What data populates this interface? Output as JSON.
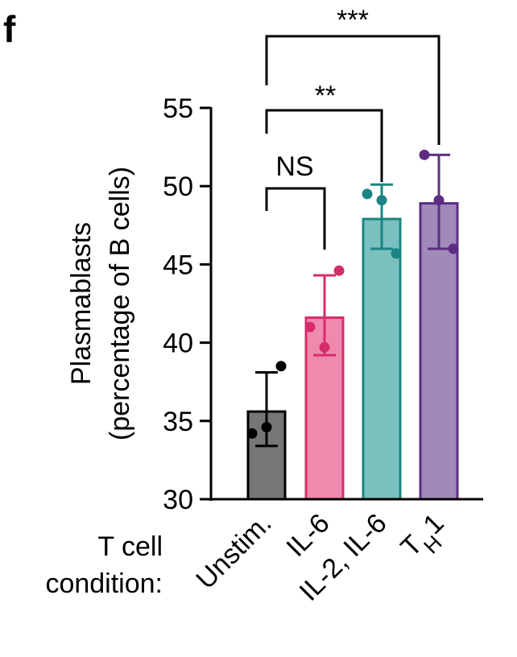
{
  "panel_label": "f",
  "chart_data": {
    "type": "bar",
    "ylabel_line1": "Plasmablasts",
    "ylabel_line2": "(percentage of B cells)",
    "ylim": [
      30,
      55
    ],
    "yticks": [
      30,
      35,
      40,
      45,
      50,
      55
    ],
    "xaxis_title_line1": "T cell",
    "xaxis_title_line2": "condition:",
    "categories": [
      {
        "label": "Unstim.",
        "mean": 35.6,
        "sd_low": 33.4,
        "sd_high": 38.1,
        "points": [
          34.2,
          34.6,
          38.5
        ],
        "fill": "#767676",
        "stroke": "#000000",
        "dot": "#000000"
      },
      {
        "label": "IL-6",
        "mean": 41.6,
        "sd_low": 39.2,
        "sd_high": 44.3,
        "points": [
          41.0,
          39.7,
          44.6
        ],
        "fill": "#ee8aad",
        "stroke": "#d52d6b",
        "dot": "#d52d6b"
      },
      {
        "label": "IL-2, IL-6",
        "mean": 47.9,
        "sd_low": 46.0,
        "sd_high": 50.1,
        "points": [
          49.5,
          49.1,
          45.7
        ],
        "fill": "#7bbfbf",
        "stroke": "#1a8584",
        "dot": "#1a8584"
      },
      {
        "label_main": "T",
        "label_sub": "H",
        "label_tail": "1",
        "mean": 48.9,
        "sd_low": 46.0,
        "sd_high": 52.0,
        "points": [
          52.0,
          49.1,
          46.0
        ],
        "fill": "#9f8ab9",
        "stroke": "#5d2d82",
        "dot": "#5d2d82"
      }
    ],
    "comparisons": [
      {
        "label": "NS"
      },
      {
        "label": "**"
      },
      {
        "label": "***"
      }
    ]
  }
}
